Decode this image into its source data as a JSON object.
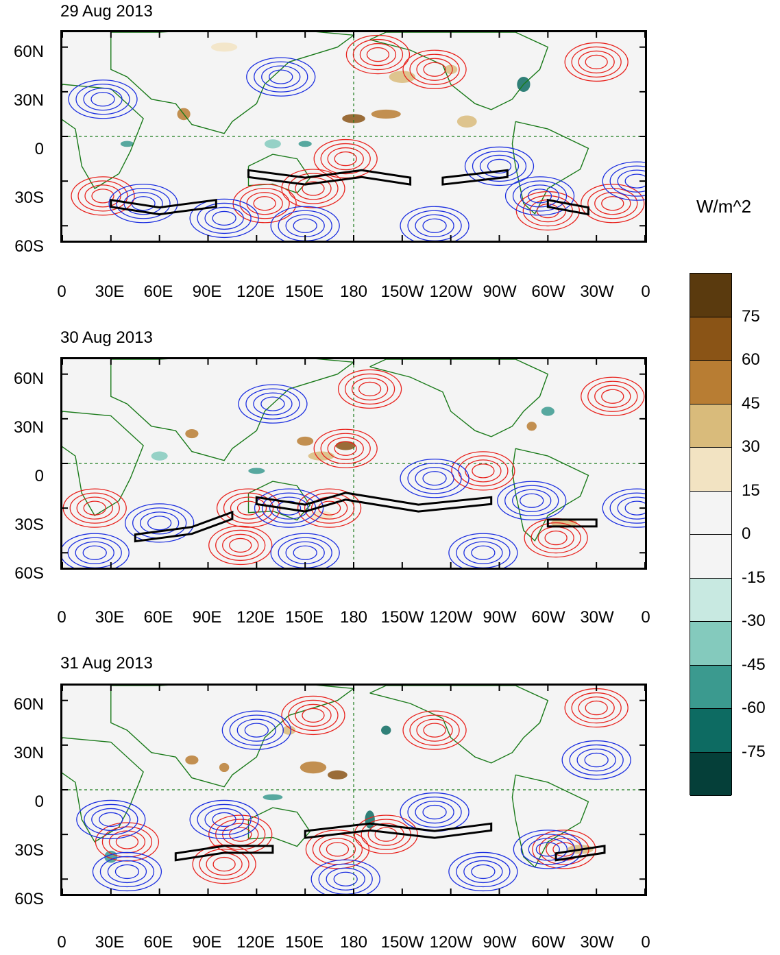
{
  "panels": [
    {
      "title": "29 Aug 2013"
    },
    {
      "title": "30 Aug 2013"
    },
    {
      "title": "31 Aug 2013"
    }
  ],
  "lat_labels": [
    "60N",
    "30N",
    "0",
    "30S",
    "60S"
  ],
  "lon_labels": [
    "0",
    "30E",
    "60E",
    "90E",
    "120E",
    "150E",
    "180",
    "150W",
    "120W",
    "90W",
    "60W",
    "30W",
    "0"
  ],
  "colorbar": {
    "unit": "W/m^2",
    "levels": [
      "75",
      "60",
      "45",
      "30",
      "15",
      "0",
      "-15",
      "-30",
      "-45",
      "-60",
      "-75"
    ],
    "colors": [
      "#5a3a0e",
      "#8a5416",
      "#b87d33",
      "#d9bb7b",
      "#f2e3c2",
      "#f4f4f4",
      "#f4f4f4",
      "#c8e9e1",
      "#84cabd",
      "#3b9a8f",
      "#0d6b62",
      "#053f39"
    ]
  },
  "contour_colors": {
    "positive": "#e8231e",
    "negative": "#1c2fe0",
    "mask": "#000000",
    "coastline": "#1a7a1a"
  }
}
